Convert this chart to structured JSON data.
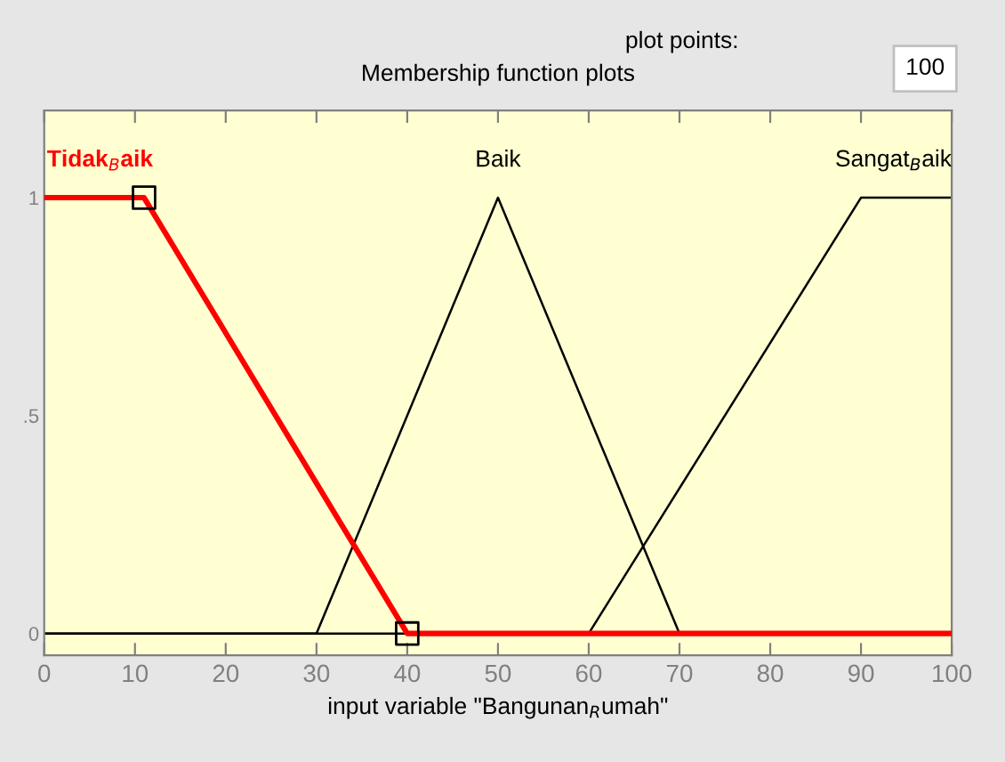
{
  "chart_data": {
    "type": "line",
    "title": "Membership function plots",
    "xlabel": "input variable \"Bangunan$_{R}$umah\"",
    "annotations": [
      "plot points:",
      "100"
    ],
    "xlim": [
      0,
      100
    ],
    "ylim": [
      -0.05,
      1.2
    ],
    "xticks": [
      0,
      10,
      20,
      30,
      40,
      50,
      60,
      70,
      80,
      90,
      100
    ],
    "yticks": [
      0,
      {
        "value": 0.5,
        "label": ".5"
      },
      1
    ],
    "grid": false,
    "legend": false,
    "line_style": "solid",
    "marker": "none",
    "series": [
      {
        "name": "Tidak$_{B}$aik",
        "color": "#ff0000",
        "x": [
          0,
          11,
          40,
          100
        ],
        "values": [
          1,
          1,
          0,
          0
        ]
      },
      {
        "name": "Baik",
        "color": "#000000",
        "x": [
          0,
          30,
          50,
          70,
          100
        ],
        "values": [
          0,
          0,
          1,
          0,
          0
        ]
      },
      {
        "name": "Sangat$_{B}$aik",
        "color": "#000000",
        "x": [
          0,
          60,
          90,
          100
        ],
        "values": [
          0,
          0,
          1,
          1
        ]
      },
      {
        "type": "scatter",
        "marker": "square",
        "color": "#000000",
        "x": [
          11,
          40
        ],
        "values": [
          1,
          0
        ]
      }
    ]
  }
}
